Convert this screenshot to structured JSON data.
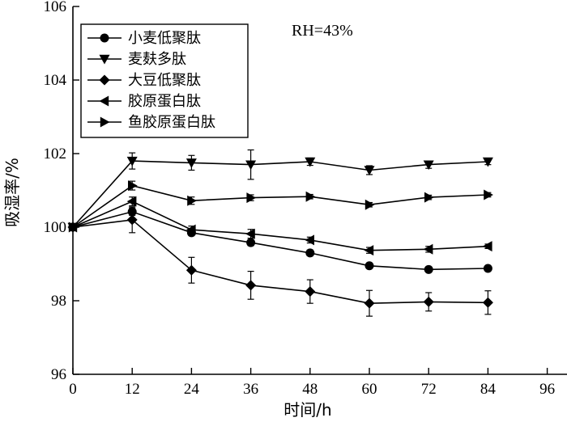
{
  "chart_data": {
    "type": "line",
    "annotation": "RH=43%",
    "xlabel": "时间/h",
    "ylabel": "吸湿率/%",
    "xlim": [
      0,
      100
    ],
    "ylim": [
      96,
      106
    ],
    "x_ticks": [
      0,
      12,
      24,
      36,
      48,
      60,
      72,
      84,
      96
    ],
    "y_ticks": [
      96,
      98,
      100,
      102,
      104,
      106
    ],
    "grid": false,
    "legend_position": "top-left",
    "x": [
      0,
      12,
      24,
      36,
      48,
      60,
      72,
      84
    ],
    "series": [
      {
        "name": "小麦低聚肽",
        "marker": "circle",
        "values": [
          100.0,
          100.42,
          99.85,
          99.58,
          99.3,
          98.95,
          98.85,
          98.88
        ],
        "errors": [
          0,
          0.1,
          0.08,
          0.08,
          0.08,
          0.06,
          0.06,
          0.06
        ]
      },
      {
        "name": "麦麸多肽",
        "marker": "triangle-down",
        "values": [
          100.0,
          101.8,
          101.75,
          101.7,
          101.78,
          101.55,
          101.7,
          101.78
        ],
        "errors": [
          0,
          0.22,
          0.2,
          0.4,
          0.1,
          0.12,
          0.1,
          0.08
        ]
      },
      {
        "name": "大豆低聚肽",
        "marker": "diamond",
        "values": [
          100.0,
          100.2,
          98.83,
          98.42,
          98.25,
          97.93,
          97.97,
          97.95
        ],
        "errors": [
          0,
          0.35,
          0.35,
          0.38,
          0.32,
          0.35,
          0.25,
          0.32
        ]
      },
      {
        "name": "胶原蛋白肽",
        "marker": "triangle-left",
        "values": [
          100.0,
          100.7,
          99.93,
          99.82,
          99.65,
          99.37,
          99.4,
          99.48
        ],
        "errors": [
          0,
          0.12,
          0.1,
          0.12,
          0.08,
          0.08,
          0.08,
          0.06
        ]
      },
      {
        "name": "鱼胶原蛋白肽",
        "marker": "triangle-right",
        "values": [
          100.0,
          101.13,
          100.72,
          100.8,
          100.83,
          100.61,
          100.81,
          100.88
        ],
        "errors": [
          0,
          0.12,
          0.1,
          0.08,
          0.06,
          0.06,
          0.06,
          0.06
        ]
      }
    ]
  }
}
